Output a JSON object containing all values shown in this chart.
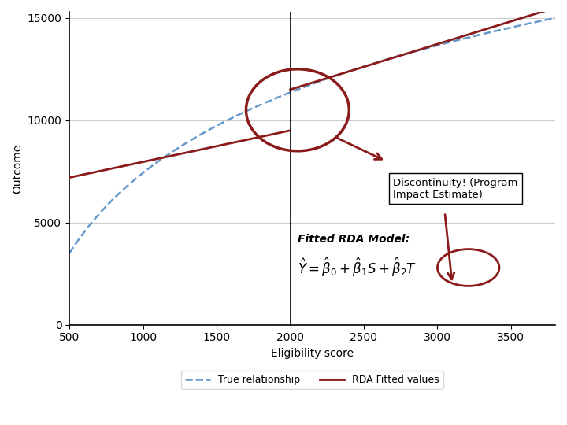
{
  "x_min": 500,
  "x_max": 3800,
  "y_min": 0,
  "y_max": 15000,
  "cutoff": 2000,
  "xlabel": "Eligibility score",
  "ylabel": "Outcome",
  "yticks": [
    0,
    5000,
    10000,
    15000
  ],
  "xticks": [
    500,
    1000,
    1500,
    2000,
    2500,
    3000,
    3500
  ],
  "true_color": "#6699CC",
  "rda_color": "#8B1A1A",
  "true_label": "True relationship",
  "rda_label": "RDA Fitted values",
  "bg_color": "#F0F0F0",
  "annotation_box_text": "Discontinuity! (Program\nImpact Estimate)",
  "formula_text_line1": "Fitted RDA Model:",
  "cutoff_color": "black",
  "circle_color": "#8B1A1A",
  "arrow_color": "#8B1A1A",
  "grid_color": "#CCCCCC"
}
